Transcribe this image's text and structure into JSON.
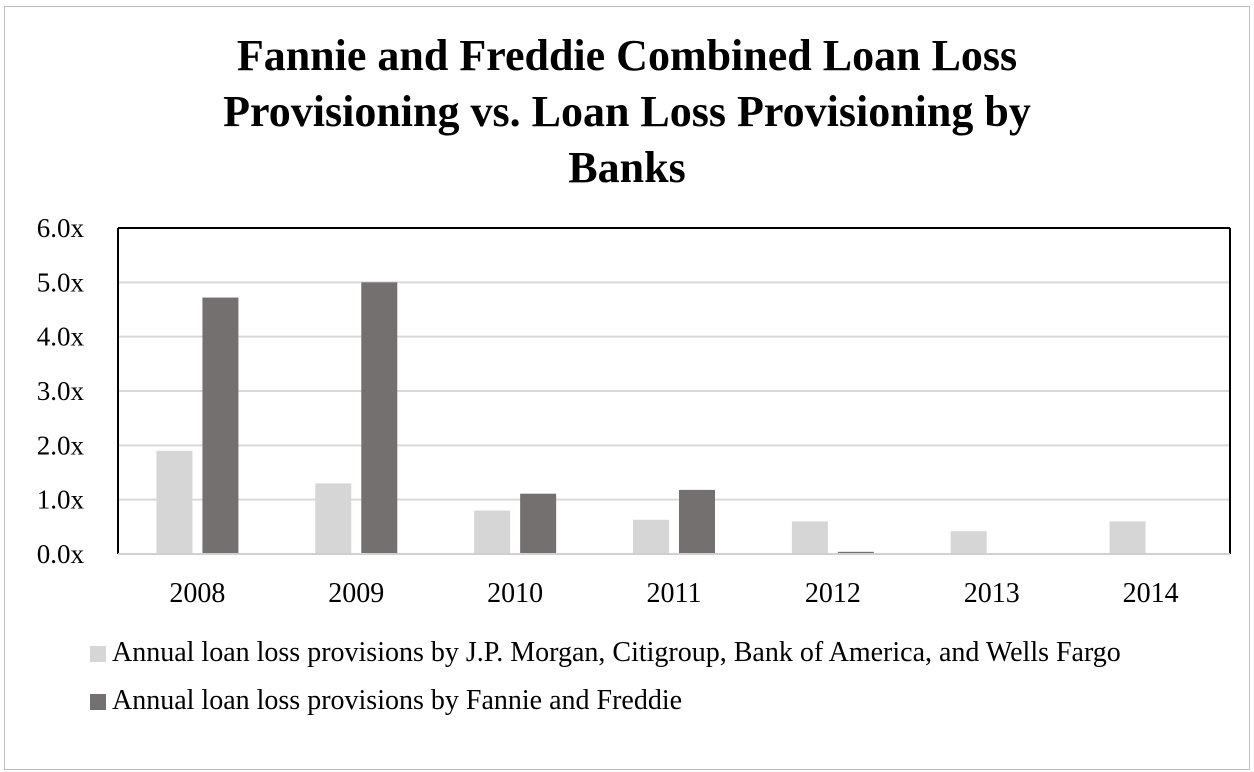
{
  "chart_data": {
    "type": "bar",
    "title_lines": [
      "Fannie and Freddie Combined Loan Loss",
      "Provisioning vs. Loan Loss Provisioning by",
      "Banks"
    ],
    "categories": [
      "2008",
      "2009",
      "2010",
      "2011",
      "2012",
      "2013",
      "2014"
    ],
    "series": [
      {
        "name": "Annual loan loss provisions by J.P. Morgan, Citigroup, Bank of America, and Wells Fargo",
        "values": [
          1.9,
          1.3,
          0.8,
          0.63,
          0.6,
          0.42,
          0.6
        ],
        "color": "#d6d6d6"
      },
      {
        "name": "Annual loan loss provisions by Fannie and Freddie",
        "values": [
          4.72,
          5.0,
          1.11,
          1.18,
          0.04,
          0.0,
          0.0
        ],
        "color": "#757070"
      }
    ],
    "yticks": [
      "0.0x",
      "1.0x",
      "2.0x",
      "3.0x",
      "4.0x",
      "5.0x",
      "6.0x"
    ],
    "ylim": [
      0,
      6
    ],
    "grid": true,
    "legend_position": "bottom"
  }
}
